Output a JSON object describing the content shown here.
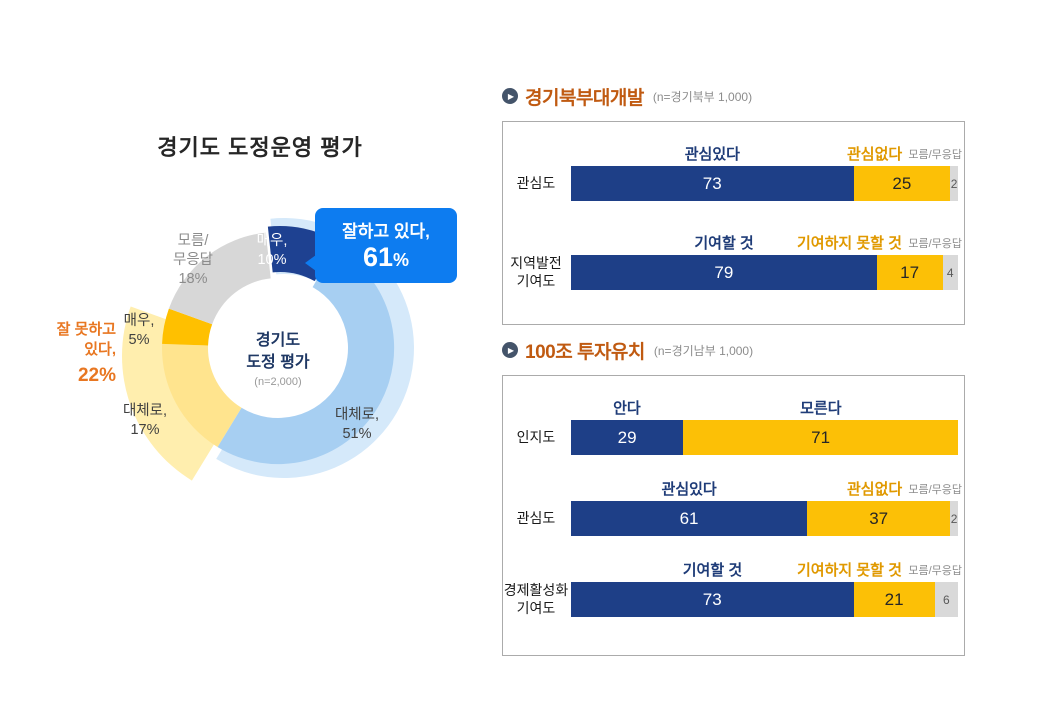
{
  "theme": {
    "positive_color": "#1e3f87",
    "negative_color": "#fcc006",
    "unknown_color": "#d9d9d9",
    "section_title_color": "#c05a11",
    "callout_color": "#0d7cf0",
    "negative_text_color": "#e87722"
  },
  "chart_data": [
    {
      "type": "pie",
      "variant": "donut",
      "title": "경기도 도정운영 평가",
      "center_label": {
        "line1": "경기도",
        "line2": "도정 평가",
        "sample": "(n=2,000)"
      },
      "segments": [
        {
          "label": "매우 (긍정)",
          "value": 10,
          "color": "#1e4191",
          "lines": [
            "매우,",
            "10%"
          ]
        },
        {
          "label": "대체로 (긍정)",
          "value": 51,
          "color": "#a7cff2",
          "lines": [
            "대체로,",
            "51%"
          ]
        },
        {
          "label": "대체로 (부정)",
          "value": 17,
          "color": "#ffe48e",
          "lines": [
            "대체로,",
            "17%"
          ]
        },
        {
          "label": "매우 (부정)",
          "value": 5,
          "color": "#ffc000",
          "lines": [
            "매우,",
            "5%"
          ]
        },
        {
          "label": "모름/무응답",
          "value": 18,
          "color": "#d7d7d7",
          "lines": [
            "모름/",
            "무응답",
            "18%"
          ]
        }
      ],
      "groups": [
        {
          "label": "잘하고 있다,",
          "value": 61,
          "display": "61",
          "unit": "%",
          "glow_color": "#d5e9fa",
          "span_segments": [
            0,
            1
          ]
        },
        {
          "label": "잘 못하고 있다,",
          "lines": [
            "잘 못하고",
            "있다,"
          ],
          "value": 22,
          "display": "22%",
          "glow_color": "#ffeeae",
          "span_segments": [
            2,
            3
          ]
        }
      ]
    },
    {
      "type": "bar",
      "variant": "horizontal-stacked",
      "title": "경기북부대개발",
      "sample": "(n=경기북부 1,000)",
      "xlim": [
        0,
        100
      ],
      "rows": [
        {
          "category": "관심도",
          "segments": [
            {
              "role": "positive",
              "label": "관심있다",
              "label_color": "#1f3c78",
              "value": 73,
              "color": "#1e3f87",
              "value_color": "#ffffff"
            },
            {
              "role": "negative",
              "label": "관심없다",
              "label_color": "#e09900",
              "value": 25,
              "color": "#fcc006",
              "value_color": "#262626"
            },
            {
              "role": "unknown",
              "label": "모름/무응답",
              "label_color": "#8c8c8c",
              "value": 2,
              "color": "#d9d9d9",
              "value_color": "#595959"
            }
          ]
        },
        {
          "category": "지역발전\n기여도",
          "segments": [
            {
              "role": "positive",
              "label": "기여할 것",
              "label_color": "#1f3c78",
              "value": 79,
              "color": "#1e3f87",
              "value_color": "#ffffff"
            },
            {
              "role": "negative",
              "label": "기여하지 못할 것",
              "label_color": "#e09900",
              "value": 17,
              "color": "#fcc006",
              "value_color": "#262626"
            },
            {
              "role": "unknown",
              "label": "모름/무응답",
              "label_color": "#8c8c8c",
              "value": 4,
              "color": "#d9d9d9",
              "value_color": "#595959"
            }
          ]
        }
      ]
    },
    {
      "type": "bar",
      "variant": "horizontal-stacked",
      "title": "100조 투자유치",
      "sample": "(n=경기남부 1,000)",
      "xlim": [
        0,
        100
      ],
      "rows": [
        {
          "category": "인지도",
          "segments": [
            {
              "role": "positive",
              "label": "안다",
              "label_color": "#1f3c78",
              "value": 29,
              "color": "#1e3f87",
              "value_color": "#ffffff"
            },
            {
              "role": "negative",
              "label": "모른다",
              "label_color": "#1f3c78",
              "value": 71,
              "color": "#fcc006",
              "value_color": "#262626"
            }
          ]
        },
        {
          "category": "관심도",
          "segments": [
            {
              "role": "positive",
              "label": "관심있다",
              "label_color": "#1f3c78",
              "value": 61,
              "color": "#1e3f87",
              "value_color": "#ffffff"
            },
            {
              "role": "negative",
              "label": "관심없다",
              "label_color": "#e09900",
              "value": 37,
              "color": "#fcc006",
              "value_color": "#262626"
            },
            {
              "role": "unknown",
              "label": "모름/무응답",
              "label_color": "#8c8c8c",
              "value": 2,
              "color": "#d9d9d9",
              "value_color": "#595959"
            }
          ]
        },
        {
          "category": "경제활성화\n기여도",
          "segments": [
            {
              "role": "positive",
              "label": "기여할 것",
              "label_color": "#1f3c78",
              "value": 73,
              "color": "#1e3f87",
              "value_color": "#ffffff"
            },
            {
              "role": "negative",
              "label": "기여하지 못할 것",
              "label_color": "#e09900",
              "value": 21,
              "color": "#fcc006",
              "value_color": "#262626"
            },
            {
              "role": "unknown",
              "label": "모름/무응답",
              "label_color": "#8c8c8c",
              "value": 6,
              "color": "#d9d9d9",
              "value_color": "#595959"
            }
          ]
        }
      ]
    }
  ]
}
